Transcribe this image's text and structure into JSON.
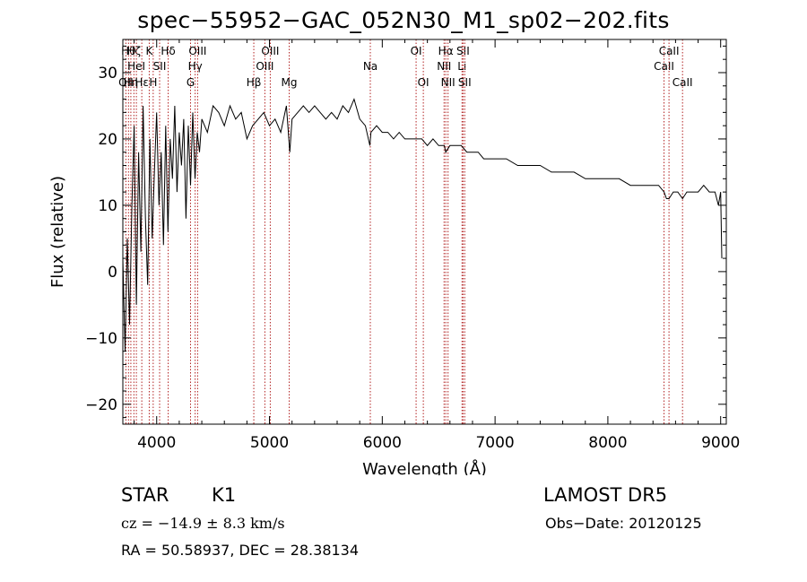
{
  "chart_data": {
    "type": "line",
    "title": "spec−55952−GAC_052N30_M1_sp02−202.fits",
    "xlabel": "Wavelength (Å)",
    "ylabel": "Flux (relative)",
    "xlim": [
      3700,
      9050
    ],
    "ylim": [
      -23,
      35
    ],
    "xticks": [
      4000,
      5000,
      6000,
      7000,
      8000,
      9000
    ],
    "xtick_labels": [
      "4000",
      "5000",
      "6000",
      "7000",
      "8000",
      "9000"
    ],
    "yticks": [
      -20,
      -10,
      0,
      10,
      20,
      30
    ],
    "ytick_labels": [
      "−20",
      "−10",
      "0",
      "10",
      "20",
      "30"
    ],
    "grid": false,
    "line_color": "#000000",
    "marker_line_color": "#b22222",
    "series": [
      {
        "x": [
          3700,
          3720,
          3740,
          3760,
          3780,
          3800,
          3820,
          3840,
          3860,
          3880,
          3900,
          3920,
          3940,
          3960,
          3980,
          4000,
          4020,
          4040,
          4060,
          4080,
          4100,
          4120,
          4140,
          4160,
          4180,
          4200,
          4220,
          4240,
          4260,
          4280,
          4300,
          4320,
          4340,
          4360,
          4380,
          4400,
          4450,
          4500,
          4550,
          4600,
          4650,
          4700,
          4750,
          4800,
          4850,
          4900,
          4950,
          5000,
          5050,
          5100,
          5150,
          5180,
          5200,
          5250,
          5300,
          5350,
          5400,
          5450,
          5500,
          5550,
          5600,
          5650,
          5700,
          5750,
          5800,
          5850,
          5890,
          5900,
          5950,
          6000,
          6050,
          6100,
          6150,
          6200,
          6250,
          6300,
          6350,
          6400,
          6450,
          6500,
          6550,
          6563,
          6600,
          6650,
          6700,
          6750,
          6800,
          6850,
          6900,
          6950,
          7000,
          7100,
          7200,
          7300,
          7400,
          7500,
          7600,
          7700,
          7800,
          7900,
          8000,
          8100,
          8200,
          8300,
          8400,
          8450,
          8498,
          8520,
          8542,
          8580,
          8620,
          8662,
          8700,
          8750,
          8800,
          8850,
          8900,
          8950,
          8980,
          9000,
          9010
        ],
        "y": [
          2,
          -12,
          5,
          -8,
          10,
          22,
          -5,
          18,
          3,
          25,
          8,
          -2,
          20,
          5,
          15,
          24,
          10,
          18,
          4,
          22,
          6,
          20,
          14,
          25,
          12,
          21,
          16,
          23,
          8,
          22,
          13,
          24,
          14,
          21,
          18,
          23,
          21,
          25,
          24,
          22,
          25,
          23,
          24,
          20,
          22,
          23,
          24,
          22,
          23,
          21,
          25,
          18,
          23,
          24,
          25,
          24,
          25,
          24,
          23,
          24,
          23,
          25,
          24,
          26,
          23,
          22,
          19,
          21,
          22,
          21,
          21,
          20,
          21,
          20,
          20,
          20,
          20,
          19,
          20,
          19,
          19,
          18,
          19,
          19,
          19,
          18,
          18,
          18,
          17,
          17,
          17,
          17,
          16,
          16,
          16,
          15,
          15,
          15,
          14,
          14,
          14,
          14,
          13,
          13,
          13,
          13,
          12,
          11,
          11,
          12,
          12,
          11,
          12,
          12,
          12,
          13,
          12,
          12,
          10,
          12,
          2
        ]
      }
    ],
    "line_markers": [
      {
        "x": 3727,
        "labels": [
          "OII"
        ],
        "row": 3
      },
      {
        "x": 3750,
        "labels": [
          "Hθ"
        ],
        "row": 1
      },
      {
        "x": 3771,
        "labels": [
          "Hη"
        ],
        "row": 3
      },
      {
        "x": 3798,
        "labels": [
          "Hζ"
        ],
        "row": 1
      },
      {
        "x": 3820,
        "labels": [
          "HeI"
        ],
        "row": 2
      },
      {
        "x": 3868,
        "labels": [
          "Hε"
        ],
        "row": 3
      },
      {
        "x": 3934,
        "labels": [
          "K"
        ],
        "row": 1
      },
      {
        "x": 3969,
        "labels": [
          "H"
        ],
        "row": 3
      },
      {
        "x": 4026,
        "labels": [
          "SII"
        ],
        "row": 2
      },
      {
        "x": 4102,
        "labels": [
          "Hδ"
        ],
        "row": 1
      },
      {
        "x": 4300,
        "labels": [
          "G"
        ],
        "row": 3
      },
      {
        "x": 4341,
        "labels": [
          "Hγ"
        ],
        "row": 2
      },
      {
        "x": 4363,
        "labels": [
          "OIII"
        ],
        "row": 1
      },
      {
        "x": 4861,
        "labels": [
          "Hβ"
        ],
        "row": 3
      },
      {
        "x": 4959,
        "labels": [
          "OIII"
        ],
        "row": 2
      },
      {
        "x": 5007,
        "labels": [
          "OIII"
        ],
        "row": 1
      },
      {
        "x": 5175,
        "labels": [
          "Mg"
        ],
        "row": 3
      },
      {
        "x": 5894,
        "labels": [
          "Na"
        ],
        "row": 2
      },
      {
        "x": 6300,
        "labels": [
          "OI"
        ],
        "row": 1
      },
      {
        "x": 6364,
        "labels": [
          "OI"
        ],
        "row": 3
      },
      {
        "x": 6548,
        "labels": [
          "NII"
        ],
        "row": 2
      },
      {
        "x": 6563,
        "labels": [
          "Hα"
        ],
        "row": 1
      },
      {
        "x": 6583,
        "labels": [
          "NII"
        ],
        "row": 3
      },
      {
        "x": 6707,
        "labels": [
          "Li"
        ],
        "row": 2
      },
      {
        "x": 6716,
        "labels": [
          "SII"
        ],
        "row": 1
      },
      {
        "x": 6731,
        "labels": [
          "SII"
        ],
        "row": 3
      },
      {
        "x": 8498,
        "labels": [
          "CaII"
        ],
        "row": 2
      },
      {
        "x": 8542,
        "labels": [
          "CaII"
        ],
        "row": 1
      },
      {
        "x": 8662,
        "labels": [
          "CaII"
        ],
        "row": 3
      }
    ]
  },
  "footer": {
    "class_label": "STAR",
    "subclass": "K1",
    "survey": "LAMOST DR5",
    "cz": "cz = −14.9 ± 8.3 km/s",
    "obs_date": "Obs−Date: 20120125",
    "radec": "RA =  50.58937, DEC =  28.38134"
  }
}
